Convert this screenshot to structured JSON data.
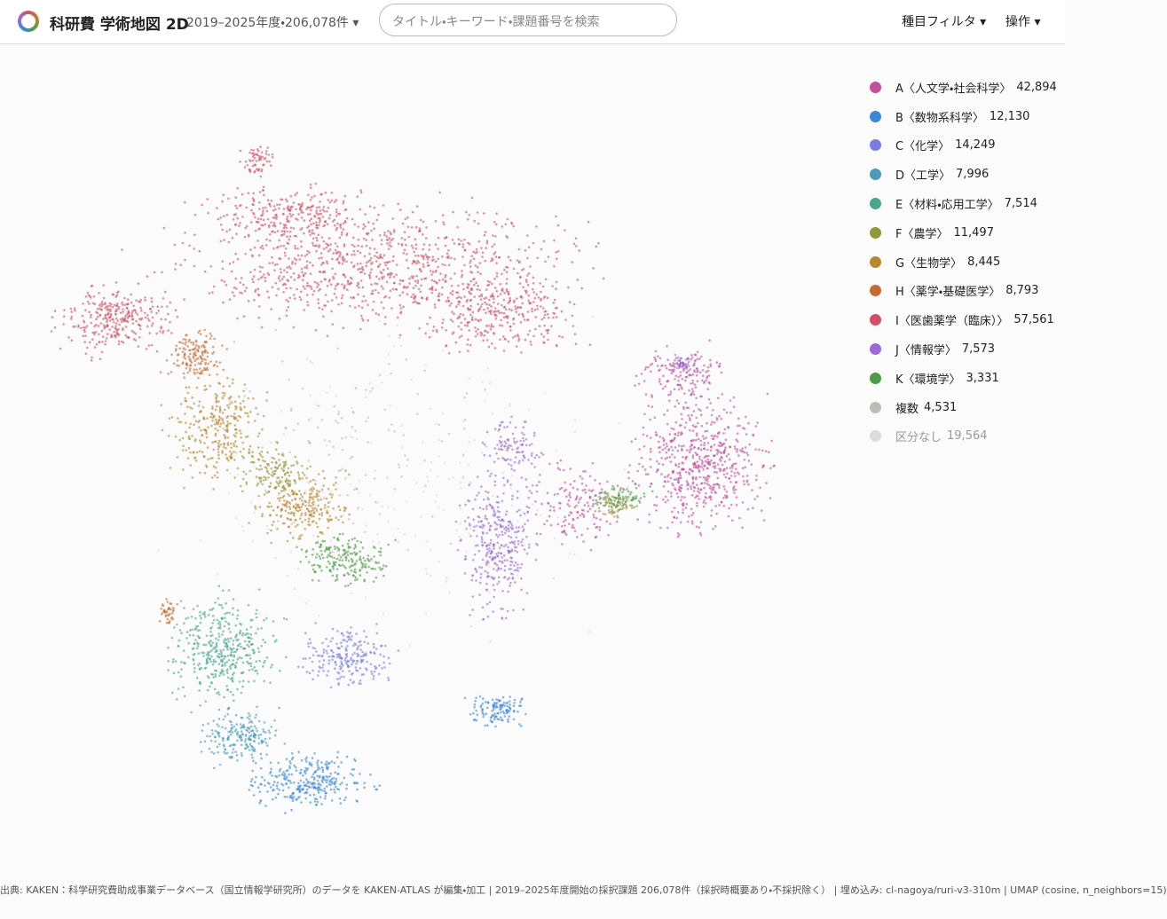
{
  "header": {
    "title": "科研費 学術地図 2D",
    "subtitle": "2019–2025年度・206,078件",
    "search_placeholder": "タイトル・キーワード・課題番号を検索",
    "menu": [
      "種目フィルタ",
      "操作"
    ]
  },
  "legend": [
    {
      "label": "A〈人文学・社会科学〉",
      "count": "42,894",
      "color": "#c0509a"
    },
    {
      "label": "B〈数物系科学〉",
      "count": "12,130",
      "color": "#3a87d8"
    },
    {
      "label": "C〈化学〉",
      "count": "14,249",
      "color": "#7a7de0"
    },
    {
      "label": "D〈工学〉",
      "count": "7,996",
      "color": "#4a9ab8"
    },
    {
      "label": "E〈材料・応用工学〉",
      "count": "7,514",
      "color": "#4aa58a"
    },
    {
      "label": "F〈農学〉",
      "count": "11,497",
      "color": "#8f9a3a"
    },
    {
      "label": "G〈生物学〉",
      "count": "8,445",
      "color": "#b8862e"
    },
    {
      "label": "H〈薬学・基礎医学〉",
      "count": "8,793",
      "color": "#c86a32"
    },
    {
      "label": "I〈医歯薬学（臨床）〉",
      "count": "57,561",
      "color": "#cf5068"
    },
    {
      "label": "J〈情報学〉",
      "count": "7,573",
      "color": "#9b6ad6"
    },
    {
      "label": "K〈環境学〉",
      "count": "3,331",
      "color": "#4f9a48"
    },
    {
      "label": "複数",
      "count": "4,531",
      "color": "#bdbdb8"
    },
    {
      "label": "区分なし",
      "count": "19,564",
      "color": "#dcdcdc"
    }
  ],
  "footer": "出典: KAKEN：科学研究費助成事業データベース（国立情報学研究所）のデータを KAKEN-ATLAS が編集・加工 | 2019–2025年度開始の採択課題 206,078件（採択時概要あり・不採択除く） | 埋め込み: cl-nagoya/ruri-v3-310m | UMAP (cosine, n_neighbors=15)"
}
